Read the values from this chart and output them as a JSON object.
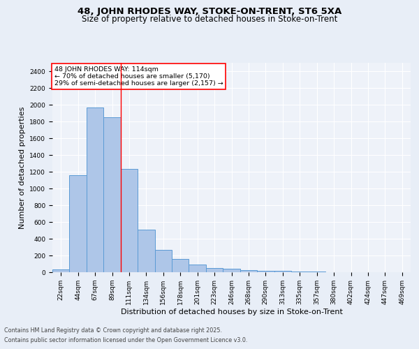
{
  "title_line1": "48, JOHN RHODES WAY, STOKE-ON-TRENT, ST6 5XA",
  "title_line2": "Size of property relative to detached houses in Stoke-on-Trent",
  "xlabel": "Distribution of detached houses by size in Stoke-on-Trent",
  "ylabel": "Number of detached properties",
  "categories": [
    "22sqm",
    "44sqm",
    "67sqm",
    "89sqm",
    "111sqm",
    "134sqm",
    "156sqm",
    "178sqm",
    "201sqm",
    "223sqm",
    "246sqm",
    "268sqm",
    "290sqm",
    "313sqm",
    "335sqm",
    "357sqm",
    "380sqm",
    "402sqm",
    "424sqm",
    "447sqm",
    "469sqm"
  ],
  "values": [
    30,
    1160,
    1970,
    1850,
    1230,
    510,
    270,
    155,
    90,
    48,
    40,
    25,
    18,
    15,
    8,
    5,
    3,
    2,
    1,
    1,
    0
  ],
  "bar_color": "#aec6e8",
  "bar_edge_color": "#5b9bd5",
  "annotation_text": "48 JOHN RHODES WAY: 114sqm\n← 70% of detached houses are smaller (5,170)\n29% of semi-detached houses are larger (2,157) →",
  "annotation_box_color": "white",
  "annotation_box_edge_color": "red",
  "red_line_x": 3.5,
  "ylim": [
    0,
    2500
  ],
  "yticks": [
    0,
    200,
    400,
    600,
    800,
    1000,
    1200,
    1400,
    1600,
    1800,
    2000,
    2200,
    2400
  ],
  "footer_line1": "Contains HM Land Registry data © Crown copyright and database right 2025.",
  "footer_line2": "Contains public sector information licensed under the Open Government Licence v3.0.",
  "bg_color": "#e8eef7",
  "plot_bg_color": "#eef2f9",
  "grid_color": "white",
  "title_fontsize": 9.5,
  "subtitle_fontsize": 8.5,
  "tick_fontsize": 6.5,
  "label_fontsize": 8,
  "footer_fontsize": 5.8
}
